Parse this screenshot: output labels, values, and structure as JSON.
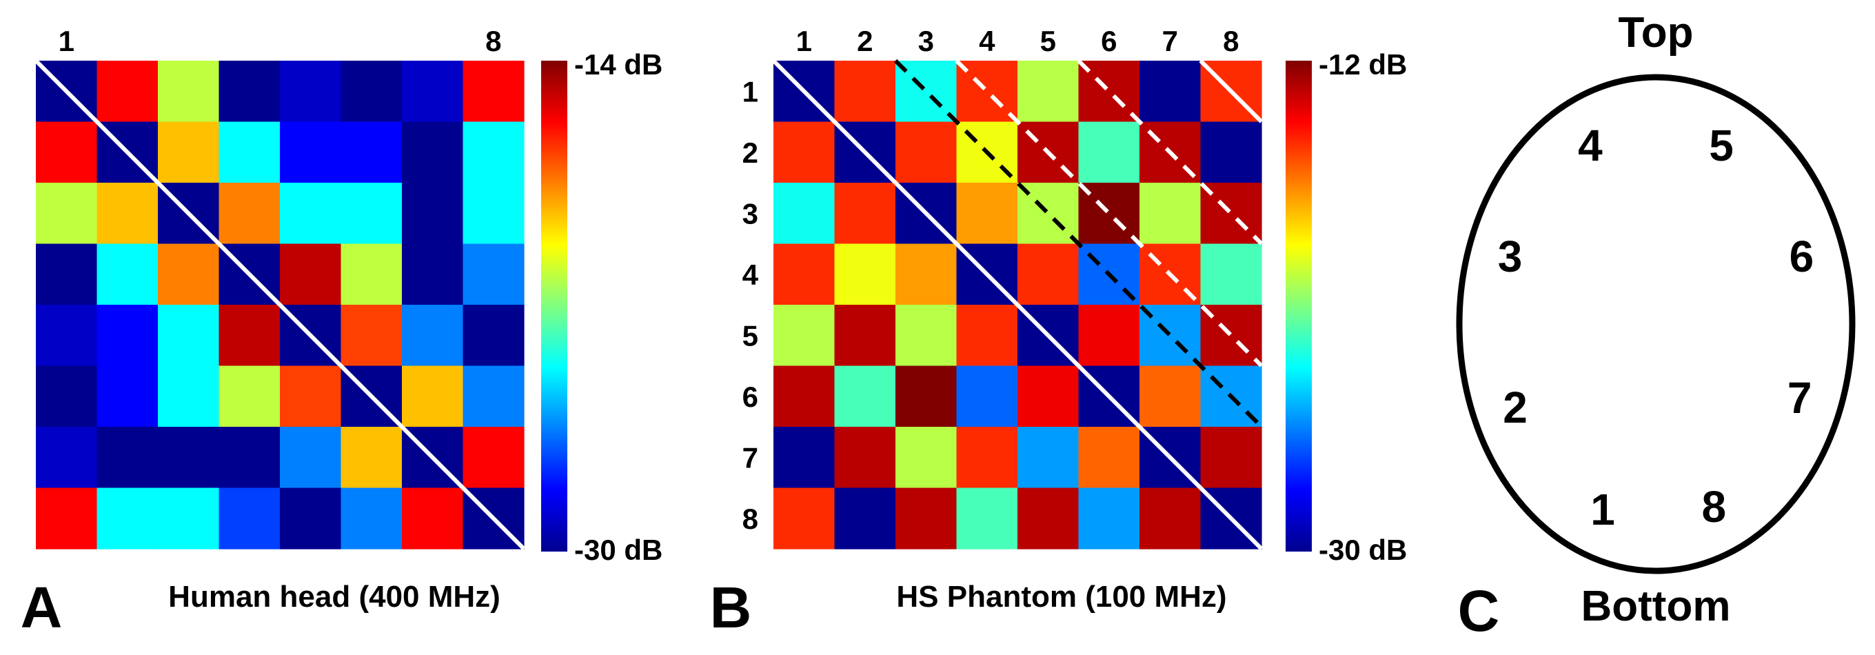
{
  "chart_data": [
    {
      "type": "heatmap",
      "panel_letter": "A",
      "title": "Human head (400 MHz)",
      "x_tick_labels": [
        "1",
        "8"
      ],
      "y_tick_labels": [],
      "colorbar": {
        "max_label": "-14 dB",
        "min_label": "-30 dB",
        "range": [
          -30,
          -14
        ]
      },
      "diagonal_lines": [
        {
          "color": "#ffffff",
          "style": "solid",
          "offset": 0
        }
      ],
      "values": [
        [
          -30,
          -16,
          -21,
          -30,
          -29,
          -30,
          -29,
          -16
        ],
        [
          -16,
          -30,
          -19,
          -24,
          -28,
          -28,
          -30,
          -24
        ],
        [
          -21,
          -19,
          -30,
          -18,
          -24,
          -24,
          -30,
          -24
        ],
        [
          -30,
          -24,
          -18,
          -30,
          -15,
          -21,
          -30,
          -26
        ],
        [
          -29,
          -28,
          -24,
          -15,
          -30,
          -17,
          -26,
          -30
        ],
        [
          -30,
          -28,
          -24,
          -21,
          -17,
          -30,
          -19,
          -26
        ],
        [
          -29,
          -30,
          -30,
          -30,
          -26,
          -19,
          -30,
          -16
        ],
        [
          -16,
          -24,
          -24,
          -27,
          -30,
          -26,
          -16,
          -30
        ]
      ]
    },
    {
      "type": "heatmap",
      "panel_letter": "B",
      "title": "HS Phantom (100 MHz)",
      "x_tick_labels": [
        "1",
        "2",
        "3",
        "4",
        "5",
        "6",
        "7",
        "8"
      ],
      "y_tick_labels": [
        "1",
        "2",
        "3",
        "4",
        "5",
        "6",
        "7",
        "8"
      ],
      "colorbar": {
        "max_label": "-12 dB",
        "min_label": "-30 dB",
        "range": [
          -30,
          -12
        ]
      },
      "diagonal_lines": [
        {
          "color": "#ffffff",
          "style": "solid",
          "offset": 0
        },
        {
          "color": "#000000",
          "style": "dashed",
          "offset": 2
        },
        {
          "color": "#ffffff",
          "style": "dashed",
          "offset": 3
        },
        {
          "color": "#ffffff",
          "style": "dashed",
          "offset": 5
        },
        {
          "color": "#ffffff",
          "style": "solid",
          "offset": 7
        }
      ],
      "values": [
        [
          -30,
          -15,
          -23,
          -15,
          -20,
          -13,
          -30,
          -15
        ],
        [
          -15,
          -30,
          -15,
          -19,
          -13,
          -22,
          -13,
          -30
        ],
        [
          -23,
          -15,
          -30,
          -17,
          -20,
          -12,
          -20,
          -13
        ],
        [
          -15,
          -19,
          -17,
          -30,
          -15,
          -26,
          -15,
          -22
        ],
        [
          -20,
          -13,
          -20,
          -15,
          -30,
          -14,
          -25,
          -13
        ],
        [
          -13,
          -22,
          -12,
          -26,
          -14,
          -30,
          -16,
          -25
        ],
        [
          -30,
          -13,
          -20,
          -15,
          -25,
          -16,
          -30,
          -13
        ],
        [
          -15,
          -30,
          -13,
          -22,
          -13,
          -25,
          -13,
          -30
        ]
      ]
    }
  ],
  "colormap": [
    "#00008f",
    "#0000ff",
    "#0080ff",
    "#00ffff",
    "#80ff80",
    "#ffff00",
    "#ff8000",
    "#ff0000",
    "#800000"
  ],
  "panel_c": {
    "letter": "C",
    "top_label": "Top",
    "bottom_label": "Bottom",
    "positions": [
      {
        "label": "1",
        "angle_deg": 110
      },
      {
        "label": "2",
        "angle_deg": 155
      },
      {
        "label": "3",
        "angle_deg": 200
      },
      {
        "label": "4",
        "angle_deg": 245
      },
      {
        "label": "5",
        "angle_deg": 295
      },
      {
        "label": "6",
        "angle_deg": 340
      },
      {
        "label": "7",
        "angle_deg": 22
      },
      {
        "label": "8",
        "angle_deg": 68
      }
    ]
  }
}
